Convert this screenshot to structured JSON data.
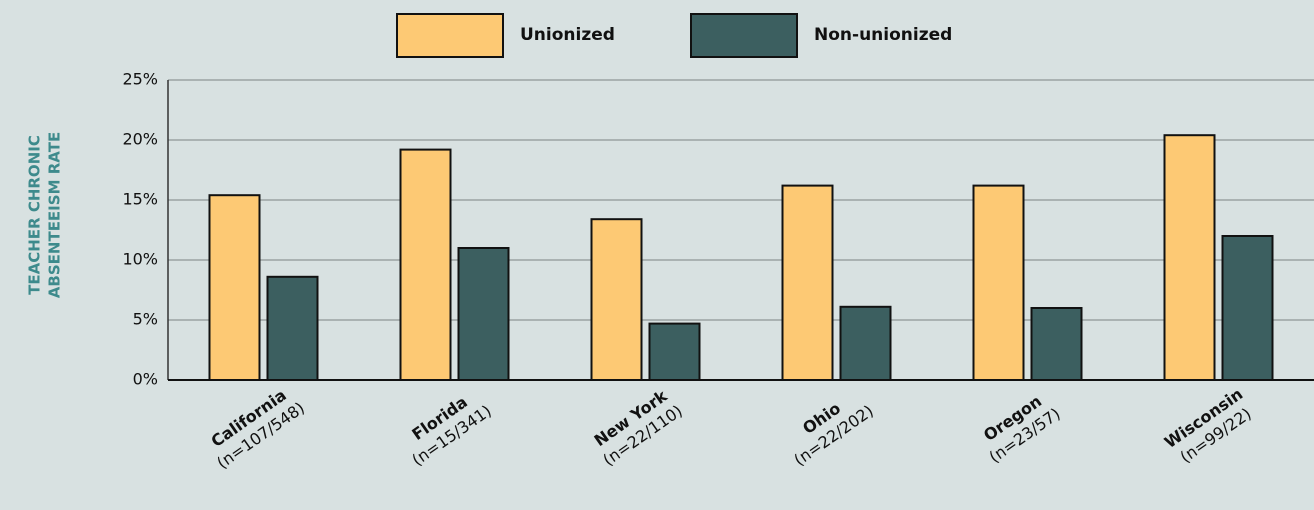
{
  "chart_data": {
    "type": "bar",
    "y_label": [
      "TEACHER CHRONIC",
      "ABSENTEEISM RATE"
    ],
    "categories": [
      "California",
      "Florida",
      "New York",
      "Ohio",
      "Oregon",
      "Wisconsin"
    ],
    "category_notes": [
      "(n=107/548)",
      "(n=15/341)",
      "(n=22/110)",
      "(n=22/202)",
      "(n=23/57)",
      "(n=99/22)"
    ],
    "series": [
      {
        "name": "Unionized",
        "color": "#fdc974",
        "values": [
          15.4,
          19.2,
          13.4,
          16.2,
          16.2,
          20.4
        ]
      },
      {
        "name": "Non-unionized",
        "color": "#3c5f60",
        "values": [
          8.6,
          11.0,
          4.7,
          6.1,
          6.0,
          12.0
        ]
      }
    ],
    "ylim": [
      0,
      25
    ],
    "yticks": [
      {
        "value": 0,
        "label": "0%"
      },
      {
        "value": 5,
        "label": "5%"
      },
      {
        "value": 10,
        "label": "10%"
      },
      {
        "value": 15,
        "label": "15%"
      },
      {
        "value": 20,
        "label": "20%"
      },
      {
        "value": 25,
        "label": "25%"
      }
    ],
    "grid": true
  }
}
